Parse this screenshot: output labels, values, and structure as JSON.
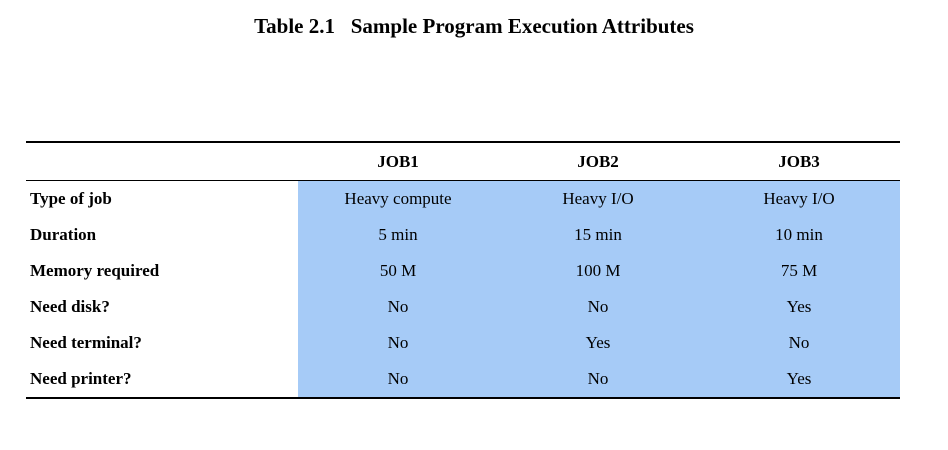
{
  "caption": "Table 2.1   Sample Program Execution Attributes",
  "table": {
    "headers": [
      "",
      "JOB1",
      "JOB2",
      "JOB3"
    ],
    "rows": [
      {
        "label": "Type of job",
        "values": [
          "Heavy compute",
          "Heavy I/O",
          "Heavy I/O"
        ]
      },
      {
        "label": "Duration",
        "values": [
          "5 min",
          "15 min",
          "10 min"
        ]
      },
      {
        "label": "Memory required",
        "values": [
          "50 M",
          "100 M",
          "75 M"
        ]
      },
      {
        "label": "Need disk?",
        "values": [
          "No",
          "No",
          "Yes"
        ]
      },
      {
        "label": "Need terminal?",
        "values": [
          "No",
          "Yes",
          "No"
        ]
      },
      {
        "label": "Need printer?",
        "values": [
          "No",
          "No",
          "Yes"
        ]
      }
    ]
  },
  "colors": {
    "cell_highlight": "#a6cbf7",
    "rule": "#000000"
  }
}
